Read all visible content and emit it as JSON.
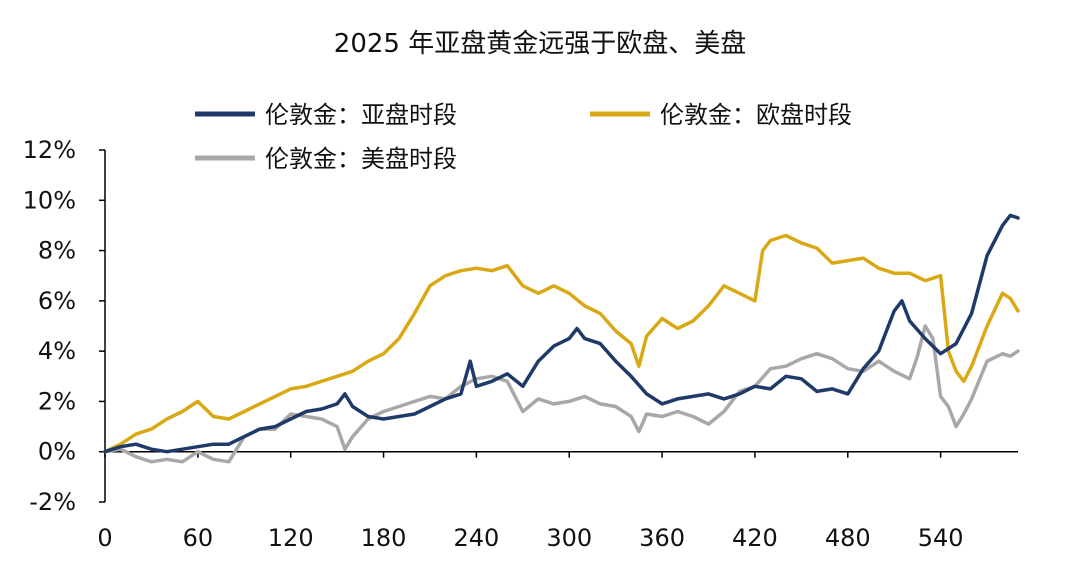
{
  "chart_data": {
    "type": "line",
    "title": "2025 年亚盘黄金远强于欧盘、美盘",
    "xlabel": "",
    "ylabel": "",
    "xlim": [
      0,
      590
    ],
    "ylim": [
      -2,
      12
    ],
    "x_ticks": [
      0,
      60,
      120,
      180,
      240,
      300,
      360,
      420,
      480,
      540
    ],
    "y_ticks": [
      -2,
      0,
      2,
      4,
      6,
      8,
      10,
      12
    ],
    "y_tick_labels": [
      "-2%",
      "0%",
      "2%",
      "4%",
      "6%",
      "8%",
      "10%",
      "12%"
    ],
    "grid": false,
    "legend_position": "top-left",
    "series": [
      {
        "name": "伦敦金：亚盘时段",
        "color": "#1f3a68",
        "points": [
          [
            0,
            0
          ],
          [
            10,
            0.2
          ],
          [
            20,
            0.3
          ],
          [
            30,
            0.1
          ],
          [
            40,
            0.0
          ],
          [
            50,
            0.1
          ],
          [
            60,
            0.2
          ],
          [
            70,
            0.3
          ],
          [
            80,
            0.3
          ],
          [
            90,
            0.6
          ],
          [
            100,
            0.9
          ],
          [
            110,
            1.0
          ],
          [
            120,
            1.3
          ],
          [
            130,
            1.6
          ],
          [
            140,
            1.7
          ],
          [
            150,
            1.9
          ],
          [
            155,
            2.3
          ],
          [
            160,
            1.8
          ],
          [
            170,
            1.4
          ],
          [
            180,
            1.3
          ],
          [
            190,
            1.4
          ],
          [
            200,
            1.5
          ],
          [
            210,
            1.8
          ],
          [
            220,
            2.1
          ],
          [
            230,
            2.3
          ],
          [
            236,
            3.6
          ],
          [
            240,
            2.6
          ],
          [
            250,
            2.8
          ],
          [
            260,
            3.1
          ],
          [
            270,
            2.6
          ],
          [
            280,
            3.6
          ],
          [
            290,
            4.2
          ],
          [
            300,
            4.5
          ],
          [
            305,
            4.9
          ],
          [
            310,
            4.5
          ],
          [
            320,
            4.3
          ],
          [
            330,
            3.6
          ],
          [
            340,
            3.0
          ],
          [
            350,
            2.3
          ],
          [
            360,
            1.9
          ],
          [
            370,
            2.1
          ],
          [
            380,
            2.2
          ],
          [
            390,
            2.3
          ],
          [
            400,
            2.1
          ],
          [
            410,
            2.3
          ],
          [
            420,
            2.6
          ],
          [
            430,
            2.5
          ],
          [
            440,
            3.0
          ],
          [
            450,
            2.9
          ],
          [
            460,
            2.4
          ],
          [
            470,
            2.5
          ],
          [
            480,
            2.3
          ],
          [
            490,
            3.3
          ],
          [
            500,
            4.0
          ],
          [
            510,
            5.6
          ],
          [
            515,
            6.0
          ],
          [
            520,
            5.2
          ],
          [
            530,
            4.5
          ],
          [
            540,
            3.9
          ],
          [
            550,
            4.3
          ],
          [
            560,
            5.5
          ],
          [
            570,
            7.8
          ],
          [
            580,
            9.0
          ],
          [
            585,
            9.4
          ],
          [
            590,
            9.3
          ]
        ]
      },
      {
        "name": "伦敦金：欧盘时段",
        "color": "#d9a915",
        "points": [
          [
            0,
            0
          ],
          [
            10,
            0.3
          ],
          [
            20,
            0.7
          ],
          [
            30,
            0.9
          ],
          [
            40,
            1.3
          ],
          [
            50,
            1.6
          ],
          [
            60,
            2.0
          ],
          [
            70,
            1.4
          ],
          [
            80,
            1.3
          ],
          [
            90,
            1.6
          ],
          [
            100,
            1.9
          ],
          [
            110,
            2.2
          ],
          [
            120,
            2.5
          ],
          [
            130,
            2.6
          ],
          [
            140,
            2.8
          ],
          [
            150,
            3.0
          ],
          [
            160,
            3.2
          ],
          [
            170,
            3.6
          ],
          [
            180,
            3.9
          ],
          [
            190,
            4.5
          ],
          [
            200,
            5.5
          ],
          [
            210,
            6.6
          ],
          [
            220,
            7.0
          ],
          [
            230,
            7.2
          ],
          [
            240,
            7.3
          ],
          [
            250,
            7.2
          ],
          [
            260,
            7.4
          ],
          [
            270,
            6.6
          ],
          [
            280,
            6.3
          ],
          [
            290,
            6.6
          ],
          [
            300,
            6.3
          ],
          [
            310,
            5.8
          ],
          [
            320,
            5.5
          ],
          [
            330,
            4.8
          ],
          [
            340,
            4.3
          ],
          [
            345,
            3.4
          ],
          [
            350,
            4.6
          ],
          [
            360,
            5.3
          ],
          [
            370,
            4.9
          ],
          [
            380,
            5.2
          ],
          [
            390,
            5.8
          ],
          [
            400,
            6.6
          ],
          [
            410,
            6.3
          ],
          [
            420,
            6.0
          ],
          [
            425,
            8.0
          ],
          [
            430,
            8.4
          ],
          [
            440,
            8.6
          ],
          [
            450,
            8.3
          ],
          [
            460,
            8.1
          ],
          [
            470,
            7.5
          ],
          [
            480,
            7.6
          ],
          [
            490,
            7.7
          ],
          [
            500,
            7.3
          ],
          [
            510,
            7.1
          ],
          [
            520,
            7.1
          ],
          [
            530,
            6.8
          ],
          [
            540,
            7.0
          ],
          [
            545,
            4.0
          ],
          [
            550,
            3.2
          ],
          [
            555,
            2.8
          ],
          [
            560,
            3.4
          ],
          [
            570,
            5.0
          ],
          [
            580,
            6.3
          ],
          [
            585,
            6.1
          ],
          [
            590,
            5.6
          ]
        ]
      },
      {
        "name": "伦敦金：美盘时段",
        "color": "#a8a8a8",
        "points": [
          [
            0,
            0
          ],
          [
            10,
            0.1
          ],
          [
            20,
            -0.2
          ],
          [
            30,
            -0.4
          ],
          [
            40,
            -0.3
          ],
          [
            50,
            -0.4
          ],
          [
            60,
            0.0
          ],
          [
            70,
            -0.3
          ],
          [
            80,
            -0.4
          ],
          [
            90,
            0.6
          ],
          [
            100,
            0.9
          ],
          [
            110,
            0.9
          ],
          [
            120,
            1.5
          ],
          [
            130,
            1.4
          ],
          [
            140,
            1.3
          ],
          [
            150,
            1.0
          ],
          [
            155,
            0.1
          ],
          [
            160,
            0.6
          ],
          [
            170,
            1.3
          ],
          [
            180,
            1.6
          ],
          [
            190,
            1.8
          ],
          [
            200,
            2.0
          ],
          [
            210,
            2.2
          ],
          [
            220,
            2.1
          ],
          [
            230,
            2.6
          ],
          [
            240,
            2.9
          ],
          [
            250,
            3.0
          ],
          [
            260,
            2.8
          ],
          [
            270,
            1.6
          ],
          [
            280,
            2.1
          ],
          [
            290,
            1.9
          ],
          [
            300,
            2.0
          ],
          [
            310,
            2.2
          ],
          [
            320,
            1.9
          ],
          [
            330,
            1.8
          ],
          [
            340,
            1.4
          ],
          [
            345,
            0.8
          ],
          [
            350,
            1.5
          ],
          [
            360,
            1.4
          ],
          [
            370,
            1.6
          ],
          [
            380,
            1.4
          ],
          [
            390,
            1.1
          ],
          [
            400,
            1.6
          ],
          [
            410,
            2.4
          ],
          [
            420,
            2.6
          ],
          [
            430,
            3.3
          ],
          [
            440,
            3.4
          ],
          [
            450,
            3.7
          ],
          [
            460,
            3.9
          ],
          [
            470,
            3.7
          ],
          [
            480,
            3.3
          ],
          [
            490,
            3.2
          ],
          [
            500,
            3.6
          ],
          [
            510,
            3.2
          ],
          [
            520,
            2.9
          ],
          [
            525,
            3.8
          ],
          [
            530,
            5.0
          ],
          [
            535,
            4.5
          ],
          [
            540,
            2.2
          ],
          [
            545,
            1.8
          ],
          [
            550,
            1.0
          ],
          [
            555,
            1.5
          ],
          [
            560,
            2.1
          ],
          [
            570,
            3.6
          ],
          [
            580,
            3.9
          ],
          [
            585,
            3.8
          ],
          [
            590,
            4.0
          ]
        ]
      }
    ]
  }
}
